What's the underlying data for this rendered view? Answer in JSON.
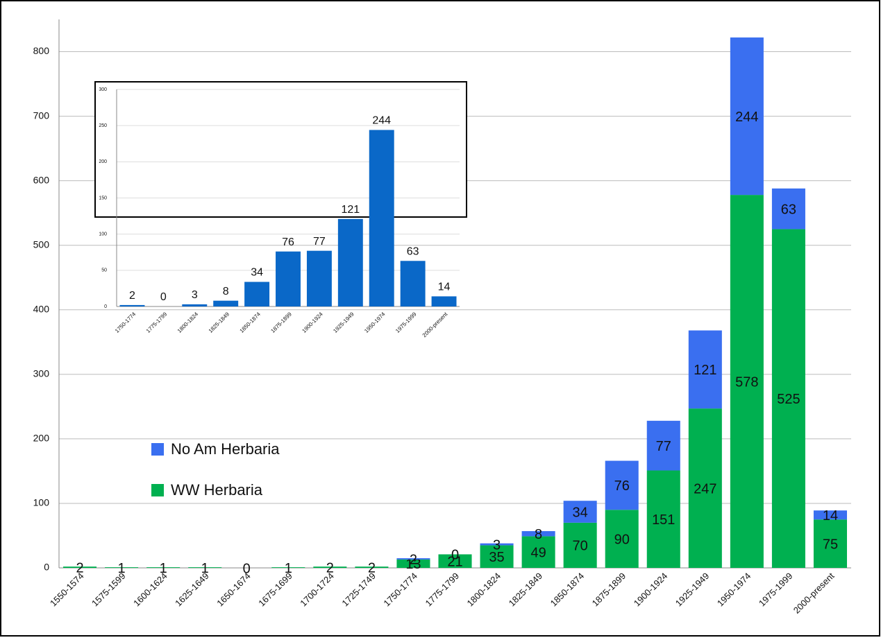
{
  "chart_data": [
    {
      "type": "bar",
      "stacked": true,
      "grid": true,
      "legend": "center-left",
      "categories": [
        "1550-1574",
        "1575-1599",
        "1600-1624",
        "1625-1649",
        "1650-1674",
        "1675-1699",
        "1700-1724",
        "1725-1749",
        "1750-1774",
        "1775-1799",
        "1800-1824",
        "1825-1849",
        "1850-1874",
        "1875-1899",
        "1900-1924",
        "1925-1949",
        "1950-1974",
        "1975-1999",
        "2000-present"
      ],
      "series": [
        {
          "name": "WW Herbaria",
          "color": "#00b050",
          "values": [
            2,
            1,
            1,
            1,
            0,
            1,
            2,
            2,
            13,
            21,
            35,
            49,
            70,
            90,
            151,
            247,
            578,
            525,
            75
          ]
        },
        {
          "name": "No Am Herbaria",
          "color": "#3a6ff0",
          "values": [
            null,
            null,
            null,
            null,
            null,
            null,
            null,
            null,
            2,
            0,
            3,
            8,
            34,
            76,
            77,
            121,
            244,
            63,
            14
          ]
        }
      ],
      "ylim": [
        0,
        850
      ],
      "yticks": [
        0,
        100,
        200,
        300,
        400,
        500,
        600,
        700,
        800
      ]
    },
    {
      "type": "bar",
      "grid": true,
      "color": "#0a68c8",
      "categories": [
        "1750-1774",
        "1775-1799",
        "1800-1824",
        "1825-1849",
        "1850-1874",
        "1875-1899",
        "1900-1924",
        "1925-1949",
        "1950-1974",
        "1975-1999",
        "2000-present"
      ],
      "values": [
        2,
        0,
        3,
        8,
        34,
        76,
        77,
        121,
        244,
        63,
        14
      ],
      "ylim": [
        0,
        300
      ],
      "yticks": [
        0,
        50,
        100,
        150,
        200,
        250,
        300
      ]
    }
  ]
}
